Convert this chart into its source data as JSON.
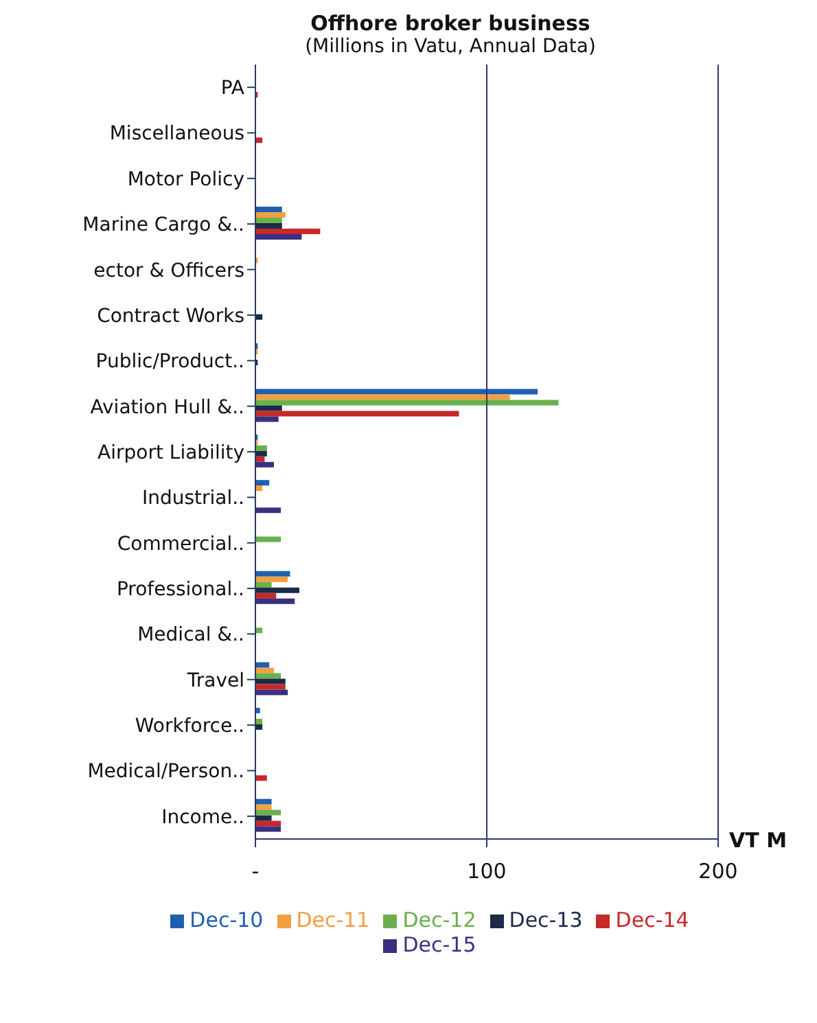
{
  "chart_data": {
    "type": "bar",
    "orientation": "horizontal",
    "title": "Offhore broker business",
    "subtitle": "(Millions in Vatu, Annual Data)",
    "xlabel": "VT M",
    "categories": [
      "PA",
      "Miscellaneous",
      "Motor Policy",
      "Marine Cargo &..",
      "ector & Officers",
      "Contract Works",
      "Public/Product..",
      "Aviation Hull &..",
      "Airport Liability",
      "Industrial..",
      "Commercial..",
      "Professional..",
      "Medical &..",
      "Travel",
      "Workforce..",
      "Medical/Person..",
      "Income.."
    ],
    "series": [
      {
        "name": "Dec-10",
        "color": "#1f5fb0",
        "values": [
          0,
          0,
          0,
          11.5,
          0,
          0,
          1,
          122,
          1,
          6,
          0,
          15,
          0,
          6,
          2,
          0,
          7
        ]
      },
      {
        "name": "Dec-11",
        "color": "#f0a040",
        "values": [
          0,
          0,
          0,
          13,
          1,
          0,
          1,
          110,
          1,
          3,
          0,
          14,
          0,
          8,
          0,
          0,
          7
        ]
      },
      {
        "name": "Dec-12",
        "color": "#6ab04c",
        "values": [
          0,
          0,
          0,
          11.5,
          0,
          0,
          0,
          131,
          5,
          0,
          11,
          7,
          3,
          11,
          3,
          0,
          11
        ]
      },
      {
        "name": "Dec-13",
        "color": "#1a2a4a",
        "values": [
          0,
          0,
          0,
          11.5,
          0,
          3,
          1,
          11.5,
          5,
          0,
          0,
          19,
          0,
          13,
          3,
          0,
          7
        ]
      },
      {
        "name": "Dec-14",
        "color": "#c82828",
        "values": [
          1,
          3,
          0,
          28,
          0,
          0,
          0,
          88,
          4,
          0,
          0,
          9,
          0,
          13,
          0,
          5,
          11
        ]
      },
      {
        "name": "Dec-15",
        "color": "#3a3080",
        "values": [
          0,
          0,
          0,
          20,
          0,
          0,
          0,
          10,
          8,
          11,
          0,
          17,
          0,
          14,
          0,
          0,
          11
        ]
      }
    ],
    "xlim": [
      0,
      200
    ],
    "xticks": [
      {
        "value": 0,
        "label": "-"
      },
      100,
      200
    ],
    "ref_lines": [
      {
        "axis": "x",
        "value": 100,
        "color": "#2a3a6a"
      },
      {
        "axis": "x",
        "value": 200,
        "color": "#2a3a6a"
      }
    ],
    "legend": "bottom"
  }
}
